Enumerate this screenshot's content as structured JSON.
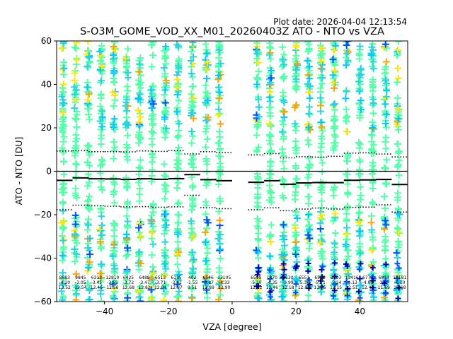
{
  "plot_date": "Plot date: 2026-04-04 12:13:54",
  "chart_data": {
    "type": "scatter",
    "title": "S-O3M_GOME_VOD_XX_M01_20260403Z ATO - NTO vs VZA",
    "xlabel": "VZA [degree]",
    "ylabel": "ATO - NTO [DU]",
    "xlim": [
      -55,
      55
    ],
    "ylim": [
      -60,
      60
    ],
    "xticks": [
      -40,
      -20,
      0,
      20,
      40
    ],
    "yticks": [
      -60,
      -40,
      -20,
      0,
      20,
      40,
      60
    ],
    "xtick_labels": [
      "−40",
      "−20",
      "0",
      "20",
      "40"
    ],
    "ytick_labels": [
      "−60",
      "−40",
      "−20",
      "0",
      "20",
      "40",
      "60"
    ],
    "grid": false,
    "zero_line": 0,
    "marker": "+",
    "colors": {
      "main": "#55ffa9",
      "secondary": "#2bd2e0",
      "tertiary": "#00c8ff",
      "yellow": "#ffe600",
      "orange": "#ffa200",
      "blue": "#0050ff",
      "darkblue": "#0000b0",
      "line": "#000000"
    },
    "columns": [
      -53,
      -49,
      -45,
      -41,
      -37,
      -33,
      -29,
      -25,
      -21,
      -17,
      -12.5,
      -8,
      -4,
      8,
      12,
      16,
      20,
      24,
      28,
      32,
      36,
      40,
      44,
      48,
      52
    ],
    "bins": [
      {
        "x0": -55,
        "x1": -50,
        "mean": -4.2,
        "std": 13.52,
        "count": "8683"
      },
      {
        "x0": -50,
        "x1": -45,
        "mean": -3.05,
        "std": 12.54,
        "count": "9845"
      },
      {
        "x0": -45,
        "x1": -40,
        "mean": -3.45,
        "std": 12.46,
        "count": "6313"
      },
      {
        "x0": -40,
        "x1": -35,
        "mean": -3.55,
        "std": 12.56,
        "count": "12810"
      },
      {
        "x0": -35,
        "x1": -30,
        "mean": -3.72,
        "std": 12.68,
        "count": "6425"
      },
      {
        "x0": -30,
        "x1": -25,
        "mean": -3.47,
        "std": 12.82,
        "count": "6488"
      },
      {
        "x0": -25,
        "x1": -20,
        "mean": -3.71,
        "std": 12.84,
        "count": "6513"
      },
      {
        "x0": -20,
        "x1": -15,
        "mean": -3.42,
        "std": 12.97,
        "count": "6135"
      },
      {
        "x0": -15,
        "x1": -10,
        "mean": -1.55,
        "std": 9.51,
        "count": "402"
      },
      {
        "x0": -10,
        "x1": -5,
        "mean": -3.87,
        "std": 12.89,
        "count": "6546"
      },
      {
        "x0": -5,
        "x1": 0,
        "mean": -4.33,
        "std": 12.9,
        "count": "13105"
      },
      {
        "x0": 5,
        "x1": 10,
        "mean": -5.1,
        "std": 12.62,
        "count": "6599"
      },
      {
        "x0": 10,
        "x1": 15,
        "mean": -4.35,
        "std": 12.46,
        "count": "1870"
      },
      {
        "x0": 15,
        "x1": 20,
        "mean": -5.99,
        "std": 12.18,
        "count": "5130"
      },
      {
        "x0": 20,
        "x1": 25,
        "mean": -5.36,
        "std": 12.05,
        "count": "6551"
      },
      {
        "x0": 25,
        "x1": 30,
        "mean": -5.21,
        "std": 11.75,
        "count": "6552"
      },
      {
        "x0": 30,
        "x1": 35,
        "mean": -5.24,
        "std": 12.15,
        "count": "6703"
      },
      {
        "x0": 35,
        "x1": 40,
        "mean": -4.13,
        "std": 12.51,
        "count": "13416"
      },
      {
        "x0": 40,
        "x1": 45,
        "mean": -4.0,
        "std": 12.49,
        "count": "6773"
      },
      {
        "x0": 45,
        "x1": 50,
        "mean": -3.77,
        "std": 11.69,
        "count": "6893"
      },
      {
        "x0": 50,
        "x1": 55,
        "mean": -6.1,
        "std": 12.68,
        "count": "10181"
      }
    ]
  }
}
